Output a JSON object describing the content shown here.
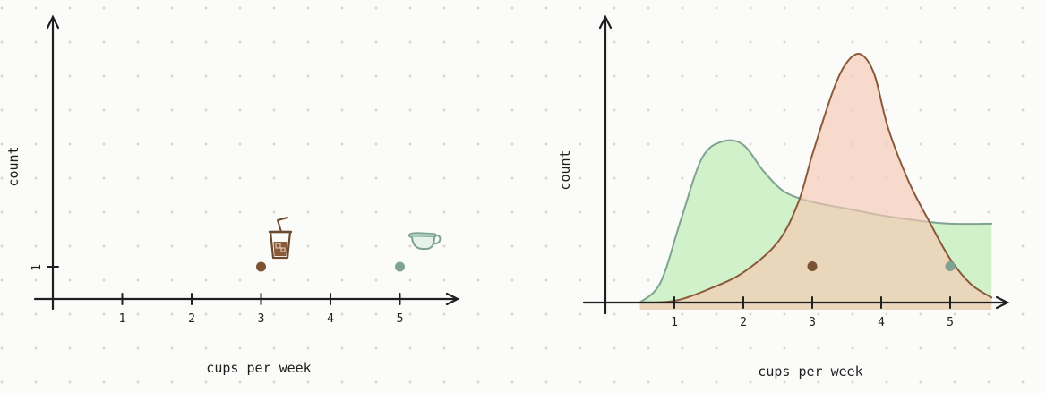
{
  "chart_data": [
    {
      "type": "scatter",
      "xlabel": "cups per week",
      "ylabel": "count",
      "x_ticks": [
        "1",
        "2",
        "3",
        "4",
        "5"
      ],
      "y_ticks": [
        "1"
      ],
      "xlim": [
        0,
        5.7
      ],
      "ylim": [
        0,
        8
      ],
      "grid": false,
      "points": [
        {
          "x": 3,
          "y": 1,
          "color": "#7a5234",
          "icon": "iced-coffee-icon"
        },
        {
          "x": 5,
          "y": 1,
          "color": "#7fa393",
          "icon": "teacup-icon"
        }
      ]
    },
    {
      "type": "area",
      "xlabel": "cups per week",
      "ylabel": "count",
      "x_ticks": [
        "1",
        "2",
        "3",
        "4",
        "5"
      ],
      "xlim": [
        0,
        5.7
      ],
      "ylim": [
        0,
        7.5
      ],
      "grid": false,
      "series": [
        {
          "color": "#7fa393",
          "fill": "#c8efc1",
          "x": [
            0.5,
            0.8,
            1.1,
            1.4,
            1.7,
            2.0,
            2.3,
            2.6,
            3.0,
            3.5,
            4.0,
            4.5,
            5.0,
            5.6
          ],
          "values": [
            0.0,
            0.6,
            2.5,
            4.3,
            4.8,
            4.7,
            3.9,
            3.3,
            3.0,
            2.8,
            2.6,
            2.45,
            2.35,
            2.35
          ]
        },
        {
          "color": "#8a5a3a",
          "fill": "#f6c7b4",
          "x": [
            0.5,
            1.0,
            1.5,
            2.0,
            2.5,
            2.8,
            3.0,
            3.3,
            3.5,
            3.7,
            3.9,
            4.1,
            4.4,
            4.7,
            5.0,
            5.3,
            5.6
          ],
          "values": [
            0.0,
            0.05,
            0.4,
            0.9,
            1.8,
            3.0,
            4.4,
            6.3,
            7.15,
            7.4,
            6.8,
            5.2,
            3.6,
            2.4,
            1.3,
            0.55,
            0.15
          ]
        }
      ],
      "points": [
        {
          "x": 3,
          "y": 1,
          "color": "#7a5234"
        },
        {
          "x": 5,
          "y": 1,
          "color": "#7fa393"
        }
      ]
    }
  ]
}
